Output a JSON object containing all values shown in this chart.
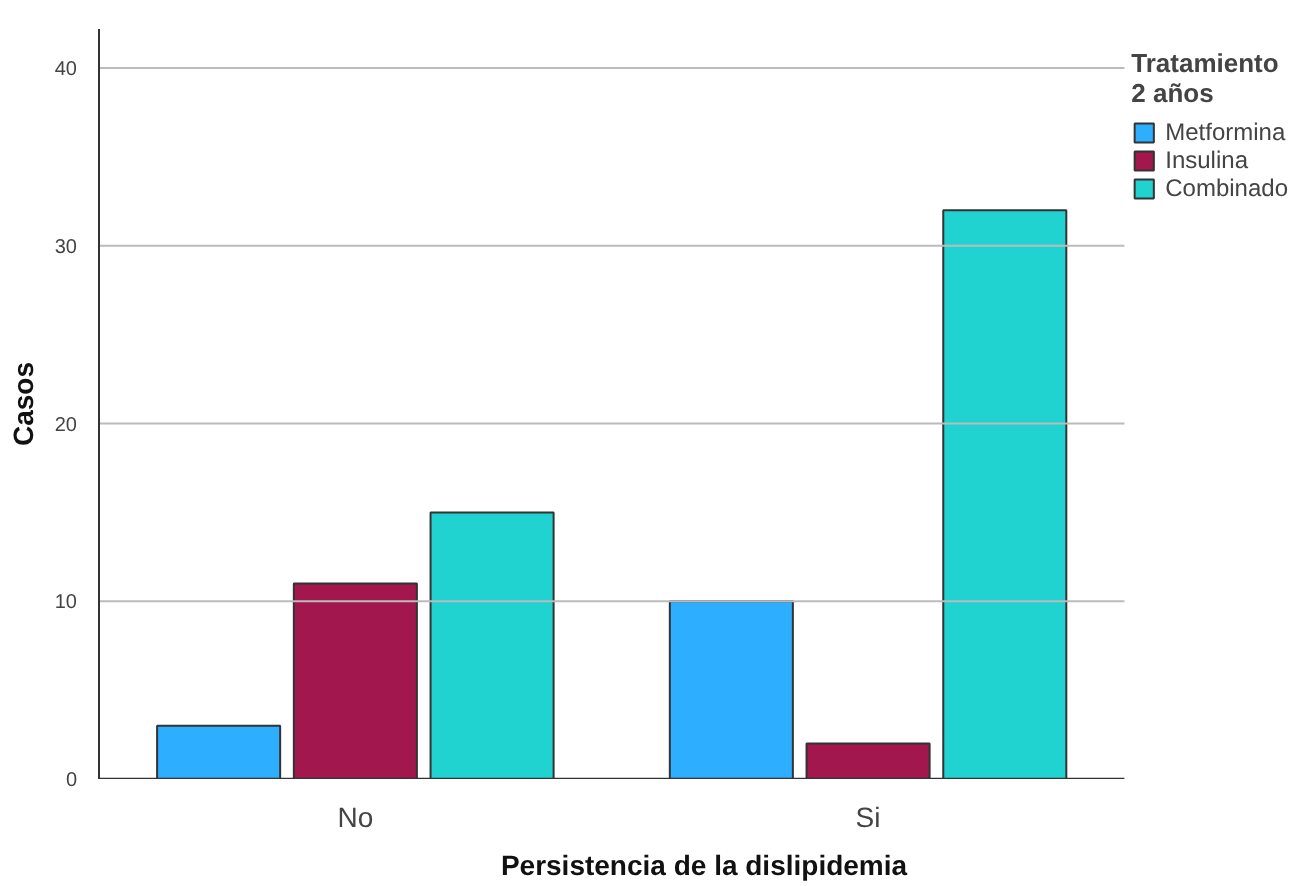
{
  "chart_data": {
    "type": "bar",
    "xlabel": "Persistencia de la dislipidemia",
    "ylabel": "Casos",
    "legend_title": "Tratamiento\n2 años",
    "categories": [
      "No",
      "Si"
    ],
    "series": [
      {
        "name": "Metformina",
        "color": "#2eaefe",
        "values": [
          3,
          10
        ]
      },
      {
        "name": "Insulina",
        "color": "#a3174f",
        "values": [
          11,
          2
        ]
      },
      {
        "name": "Combinado",
        "color": "#20d3d0",
        "values": [
          15,
          32
        ]
      }
    ],
    "ylim": [
      0,
      42.2
    ],
    "yticks": [
      0,
      10,
      20,
      30,
      40
    ],
    "grid": "y",
    "legend": "top right"
  }
}
